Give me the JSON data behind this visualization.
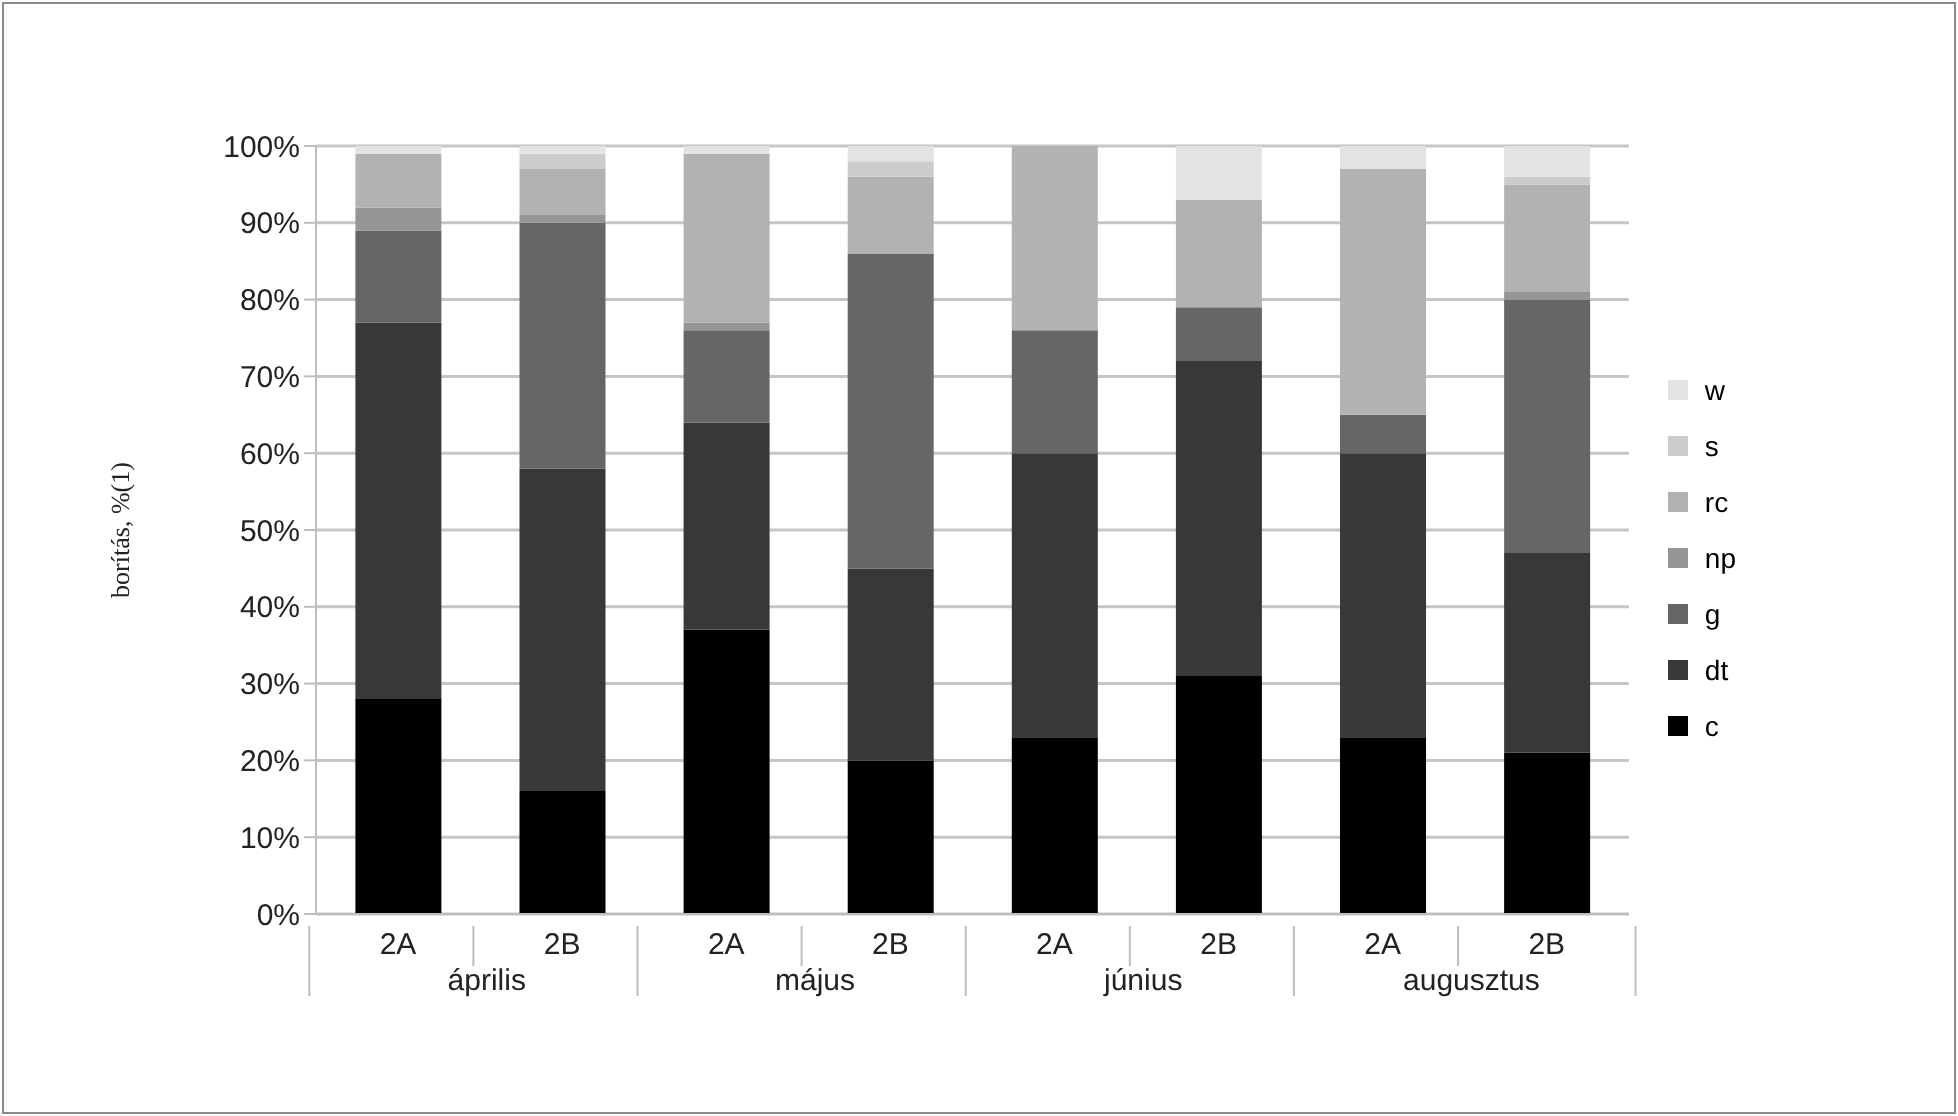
{
  "chart_data": {
    "type": "bar",
    "stacked": true,
    "ylabel": "borítás, %(1)",
    "categories": [
      "2A",
      "2B",
      "2A",
      "2B",
      "2A",
      "2B",
      "2A",
      "2B"
    ],
    "annotations": [
      "április",
      "május",
      "június",
      "augusztus"
    ],
    "series": [
      {
        "name": "c",
        "color": "#000000",
        "values": [
          28,
          16,
          37,
          20,
          23,
          31,
          23,
          21
        ]
      },
      {
        "name": "dt",
        "color": "#383838",
        "values": [
          49,
          42,
          27,
          25,
          37,
          41,
          37,
          26
        ]
      },
      {
        "name": "g",
        "color": "#666666",
        "values": [
          12,
          32,
          12,
          41,
          16,
          7,
          5,
          33
        ]
      },
      {
        "name": "np",
        "color": "#969696",
        "values": [
          3,
          1,
          1,
          0,
          0,
          0,
          0,
          1
        ]
      },
      {
        "name": "rc",
        "color": "#b2b2b2",
        "values": [
          7,
          6,
          22,
          10,
          24,
          14,
          32,
          14
        ]
      },
      {
        "name": "s",
        "color": "#cccccc",
        "values": [
          0,
          2,
          0,
          2,
          0,
          0,
          0,
          1
        ]
      },
      {
        "name": "w",
        "color": "#e3e3e3",
        "values": [
          1,
          1,
          1,
          2,
          0,
          7,
          3,
          4
        ]
      }
    ],
    "ylim": [
      0,
      100
    ],
    "yticks": [
      {
        "value": 0,
        "label": "0%"
      },
      {
        "value": 10,
        "label": "10%"
      },
      {
        "value": 20,
        "label": "20%"
      },
      {
        "value": 30,
        "label": "30%"
      },
      {
        "value": 40,
        "label": "40%"
      },
      {
        "value": 50,
        "label": "50%"
      },
      {
        "value": 60,
        "label": "60%"
      },
      {
        "value": 70,
        "label": "70%"
      },
      {
        "value": 80,
        "label": "80%"
      },
      {
        "value": 90,
        "label": "90%"
      },
      {
        "value": 100,
        "label": "100%"
      }
    ],
    "grid": "y",
    "legend": "right"
  }
}
